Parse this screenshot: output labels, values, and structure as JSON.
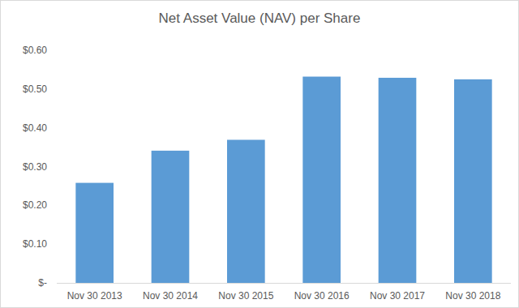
{
  "chart_data": {
    "type": "bar",
    "title": "Net Asset Value (NAV) per Share",
    "categories": [
      "Nov 30 2013",
      "Nov 30 2014",
      "Nov 30 2015",
      "Nov 30 2016",
      "Nov 30 2017",
      "Nov 30 2018"
    ],
    "values": [
      0.258,
      0.341,
      0.369,
      0.532,
      0.529,
      0.525
    ],
    "color": "#5b9bd5",
    "ylim": [
      0,
      0.6
    ],
    "yticks": [
      {
        "value": 0,
        "label": "$-"
      },
      {
        "value": 0.1,
        "label": "$0.10"
      },
      {
        "value": 0.2,
        "label": "$0.20"
      },
      {
        "value": 0.3,
        "label": "$0.30"
      },
      {
        "value": 0.4,
        "label": "$0.40"
      },
      {
        "value": 0.5,
        "label": "$0.50"
      },
      {
        "value": 0.6,
        "label": "$0.60"
      }
    ],
    "grid": false
  }
}
